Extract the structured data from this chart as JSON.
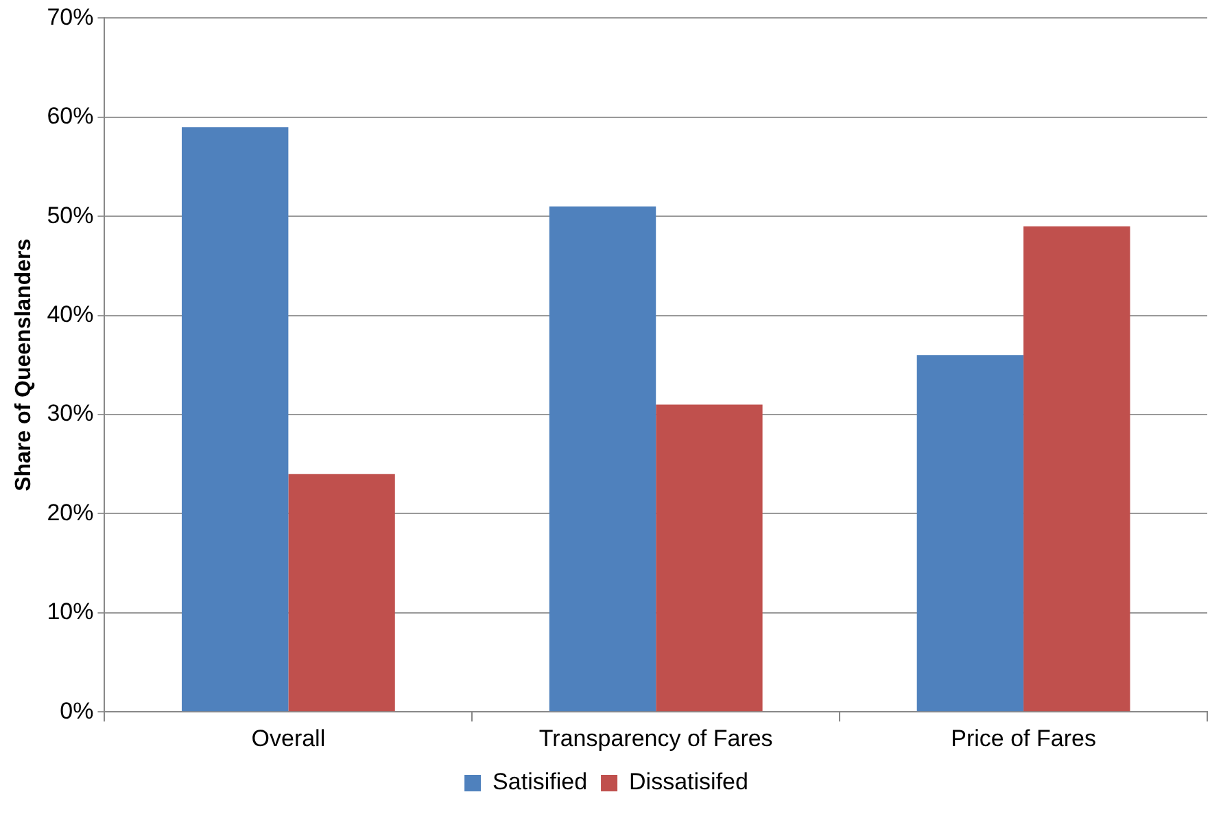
{
  "chart_data": {
    "type": "bar",
    "ylabel": "Share of Queenslanders",
    "categories": [
      "Overall",
      "Transparency of Fares",
      "Price of Fares"
    ],
    "series": [
      {
        "name": "Satisified",
        "color": "#4f81bd",
        "values": [
          59,
          51,
          36
        ]
      },
      {
        "name": "Dissatisifed",
        "color": "#c0504d",
        "values": [
          24,
          31,
          49
        ]
      }
    ],
    "ylim": [
      0,
      70
    ],
    "yticks": [
      {
        "value": 0,
        "label": "0%"
      },
      {
        "value": 10,
        "label": "10%"
      },
      {
        "value": 20,
        "label": "20%"
      },
      {
        "value": 30,
        "label": "30%"
      },
      {
        "value": 40,
        "label": "40%"
      },
      {
        "value": 50,
        "label": "50%"
      },
      {
        "value": 60,
        "label": "60%"
      },
      {
        "value": 70,
        "label": "70%"
      }
    ],
    "grid": "y",
    "legend": "bottom"
  }
}
